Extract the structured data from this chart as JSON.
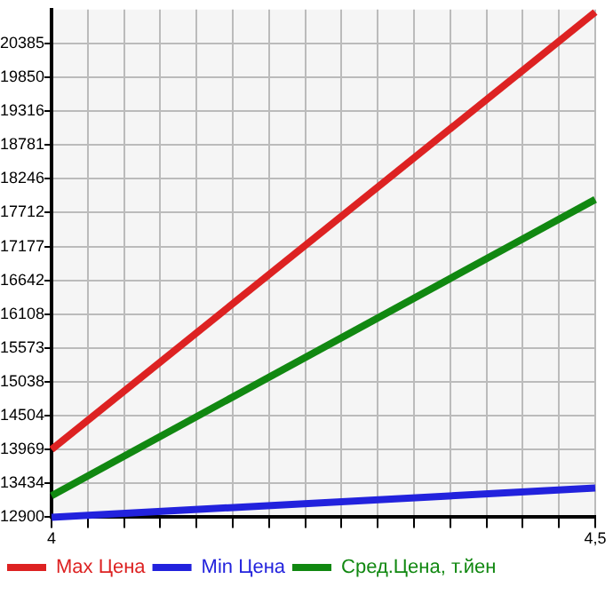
{
  "chart_data": {
    "type": "line",
    "x": [
      4,
      4.5
    ],
    "series": [
      {
        "name": "Max Цена",
        "color": "#dd2222",
        "values": [
          13970,
          20880
        ]
      },
      {
        "name": "Min Цена",
        "color": "#2222dd",
        "values": [
          12900,
          13360
        ]
      },
      {
        "name": "Сред.Цена, т.йен",
        "color": "#118811",
        "values": [
          13240,
          17920
        ]
      }
    ],
    "xlim": [
      4,
      4.5
    ],
    "xticks": [
      4,
      {
        "value": 4.0333,
        "label": null
      },
      {
        "value": 4.0667,
        "label": null
      },
      {
        "value": 4.1,
        "label": null
      },
      {
        "value": 4.1333,
        "label": null
      },
      {
        "value": 4.1667,
        "label": null
      },
      {
        "value": 4.2,
        "label": null
      },
      {
        "value": 4.2333,
        "label": null
      },
      {
        "value": 4.2667,
        "label": null
      },
      {
        "value": 4.3,
        "label": null
      },
      {
        "value": 4.3333,
        "label": null
      },
      {
        "value": 4.3667,
        "label": null
      },
      {
        "value": 4.4,
        "label": null
      },
      {
        "value": 4.4333,
        "label": null
      },
      {
        "value": 4.4667,
        "label": null
      },
      {
        "value": 4.5,
        "label": "4,5"
      }
    ],
    "ylim": [
      12900,
      20920
    ],
    "yticks": [
      12900,
      13434,
      13969,
      14504,
      15038,
      15573,
      16108,
      16642,
      17177,
      17712,
      18246,
      18781,
      19316,
      19850,
      20385
    ],
    "grid": true,
    "legend": "bottom",
    "marker": "none",
    "line_style": "solid"
  }
}
